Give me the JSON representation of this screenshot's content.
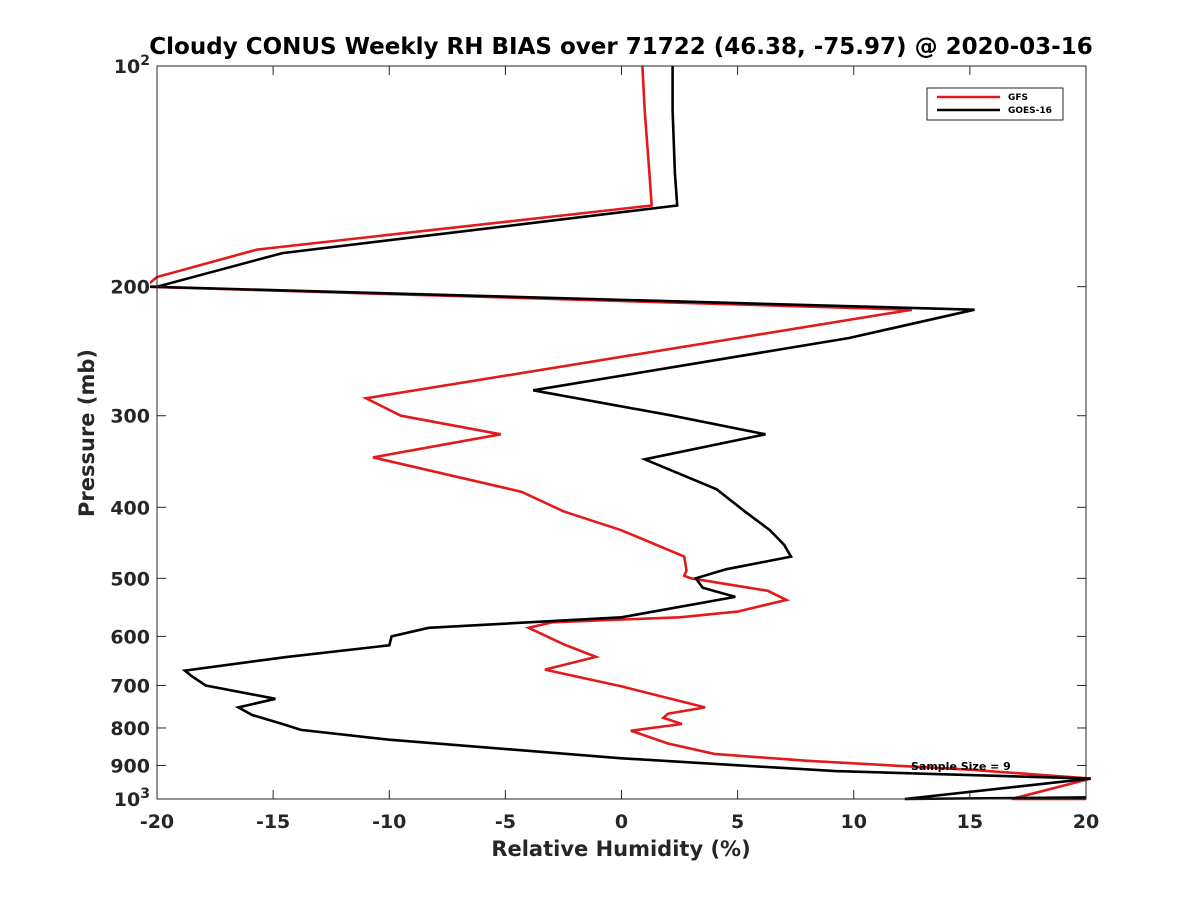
{
  "chart_data": {
    "type": "line",
    "title": "Cloudy CONUS Weekly RH BIAS over 71722 (46.38, -75.97) @ 2020-03-16",
    "xlabel": "Relative Humidity (%)",
    "ylabel": "Pressure (mb)",
    "xlim": [
      -20,
      20
    ],
    "ylim": [
      100,
      1000
    ],
    "yscale": "log",
    "y_reversed": true,
    "xticks": [
      -20,
      -15,
      -10,
      -5,
      0,
      5,
      10,
      15,
      20
    ],
    "xtick_labels": [
      "-20",
      "-15",
      "-10",
      "-5",
      "0",
      "5",
      "10",
      "15",
      "20"
    ],
    "yticks": [
      100,
      200,
      300,
      400,
      500,
      600,
      700,
      800,
      900,
      1000
    ],
    "ytick_labels": [
      {
        "base": "10",
        "exp": "2"
      },
      {
        "base": "200"
      },
      {
        "base": "300"
      },
      {
        "base": "400"
      },
      {
        "base": "500"
      },
      {
        "base": "600"
      },
      {
        "base": "700"
      },
      {
        "base": "800"
      },
      {
        "base": "900"
      },
      {
        "base": "10",
        "exp": "3"
      }
    ],
    "legend_position": "top-right",
    "annotation": "Sample Size = 9",
    "series": [
      {
        "name": "GFS",
        "color": "#e31a1c",
        "points": [
          [
            0.9,
            100
          ],
          [
            1.0,
            115
          ],
          [
            1.2,
            140
          ],
          [
            1.3,
            155
          ],
          [
            -15.7,
            178
          ],
          [
            -20,
            194
          ],
          [
            -20.5,
            200
          ],
          [
            12.5,
            215
          ],
          [
            5.0,
            235
          ],
          [
            -11.0,
            284
          ],
          [
            -9.5,
            300
          ],
          [
            -5.2,
            318
          ],
          [
            -10.7,
            342
          ],
          [
            -4.3,
            381
          ],
          [
            -2.5,
            405
          ],
          [
            0,
            430
          ],
          [
            2.7,
            467
          ],
          [
            2.8,
            488
          ],
          [
            2.7,
            496
          ],
          [
            3.0,
            500
          ],
          [
            6.3,
            520
          ],
          [
            7.1,
            535
          ],
          [
            5.0,
            555
          ],
          [
            2.5,
            565
          ],
          [
            -3.0,
            574
          ],
          [
            -4.0,
            584
          ],
          [
            -2.5,
            615
          ],
          [
            -1.1,
            640
          ],
          [
            -3.3,
            666
          ],
          [
            0,
            702
          ],
          [
            3.6,
            750
          ],
          [
            2.0,
            765
          ],
          [
            1.8,
            775
          ],
          [
            2.6,
            790
          ],
          [
            0.4,
            807
          ],
          [
            2.0,
            840
          ],
          [
            4.0,
            868
          ],
          [
            8.0,
            887
          ],
          [
            15.0,
            912
          ],
          [
            20.2,
            938
          ],
          [
            16.8,
            1000
          ],
          [
            20,
            1000
          ]
        ]
      },
      {
        "name": "GOES-16",
        "color": "#000000",
        "points": [
          [
            2.2,
            100
          ],
          [
            2.2,
            115
          ],
          [
            2.3,
            140
          ],
          [
            2.4,
            155
          ],
          [
            -14.6,
            180
          ],
          [
            -20,
            200
          ],
          [
            -20.3,
            200
          ],
          [
            15.2,
            215
          ],
          [
            9.8,
            235
          ],
          [
            -3.8,
            277
          ],
          [
            2.2,
            300
          ],
          [
            6.2,
            318
          ],
          [
            1.0,
            344
          ],
          [
            4.1,
            378
          ],
          [
            5.3,
            405
          ],
          [
            6.4,
            430
          ],
          [
            7.0,
            450
          ],
          [
            7.3,
            467
          ],
          [
            4.5,
            486
          ],
          [
            3.2,
            500
          ],
          [
            3.5,
            515
          ],
          [
            4.9,
            530
          ],
          [
            0,
            565
          ],
          [
            -8.3,
            584
          ],
          [
            -9.9,
            600
          ],
          [
            -10.0,
            617
          ],
          [
            -14.4,
            640
          ],
          [
            -18.8,
            668
          ],
          [
            -18.5,
            680
          ],
          [
            -17.9,
            700
          ],
          [
            -14.9,
            730
          ],
          [
            -16.5,
            750
          ],
          [
            -15.9,
            768
          ],
          [
            -14.6,
            790
          ],
          [
            -13.8,
            805
          ],
          [
            -10.0,
            830
          ],
          [
            0,
            880
          ],
          [
            9.2,
            916
          ],
          [
            20.2,
            938
          ],
          [
            12.2,
            1000
          ],
          [
            20,
            995
          ]
        ]
      }
    ]
  }
}
